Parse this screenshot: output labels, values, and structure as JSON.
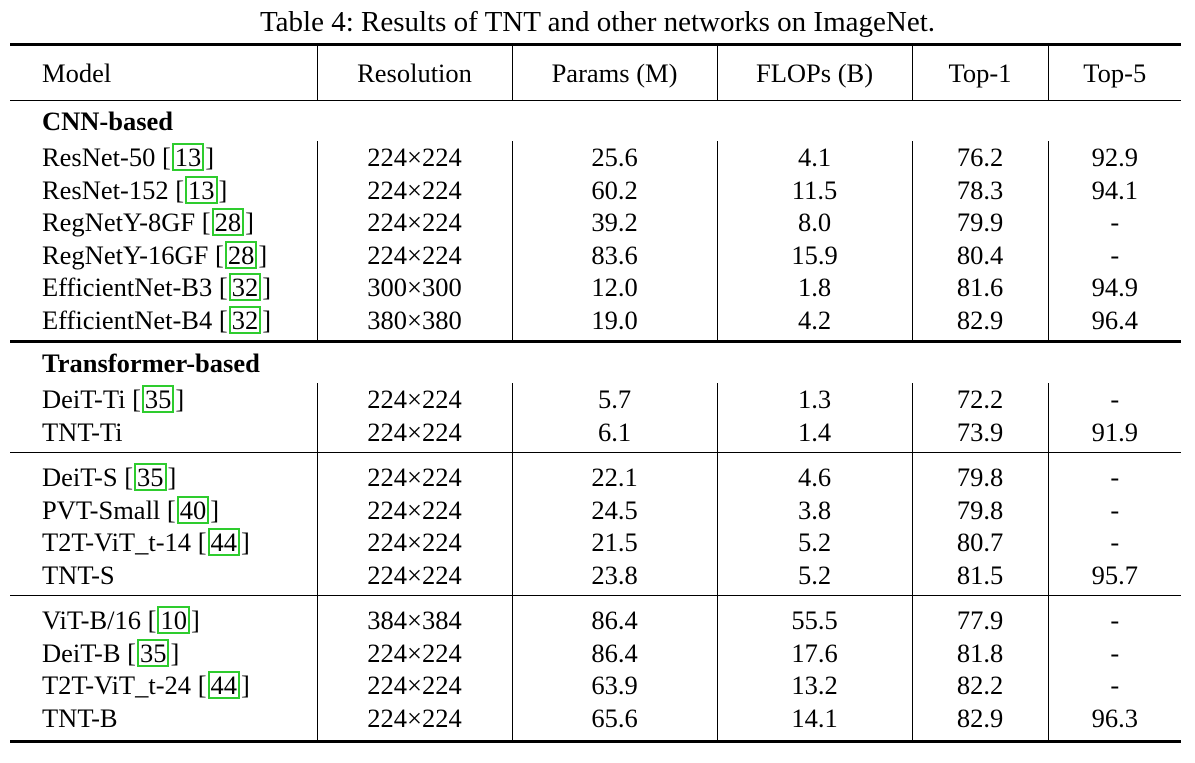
{
  "caption": "Table 4: Results of TNT and other networks on ImageNet.",
  "columns": [
    "Model",
    "Resolution",
    "Params (M)",
    "FLOPs (B)",
    "Top-1",
    "Top-5"
  ],
  "groups": [
    {
      "heading": "CNN-based",
      "rows": [
        {
          "model": "ResNet-50",
          "ref": "13",
          "resolution": "224×224",
          "params": "25.6",
          "flops": "4.1",
          "top1": "76.2",
          "top5": "92.9"
        },
        {
          "model": "ResNet-152",
          "ref": "13",
          "resolution": "224×224",
          "params": "60.2",
          "flops": "11.5",
          "top1": "78.3",
          "top5": "94.1"
        },
        {
          "model": "RegNetY-8GF",
          "ref": "28",
          "resolution": "224×224",
          "params": "39.2",
          "flops": "8.0",
          "top1": "79.9",
          "top5": "-"
        },
        {
          "model": "RegNetY-16GF",
          "ref": "28",
          "resolution": "224×224",
          "params": "83.6",
          "flops": "15.9",
          "top1": "80.4",
          "top5": "-"
        },
        {
          "model": "EfficientNet-B3",
          "ref": "32",
          "resolution": "300×300",
          "params": "12.0",
          "flops": "1.8",
          "top1": "81.6",
          "top5": "94.9"
        },
        {
          "model": "EfficientNet-B4",
          "ref": "32",
          "resolution": "380×380",
          "params": "19.0",
          "flops": "4.2",
          "top1": "82.9",
          "top5": "96.4"
        }
      ]
    },
    {
      "heading": "Transformer-based",
      "rows": [
        {
          "model": "DeiT-Ti",
          "ref": "35",
          "resolution": "224×224",
          "params": "5.7",
          "flops": "1.3",
          "top1": "72.2",
          "top5": "-"
        },
        {
          "model": "TNT-Ti",
          "ref": "",
          "resolution": "224×224",
          "params": "6.1",
          "flops": "1.4",
          "top1": "73.9",
          "top5": "91.9"
        },
        {
          "model": "DeiT-S",
          "ref": "35",
          "resolution": "224×224",
          "params": "22.1",
          "flops": "4.6",
          "top1": "79.8",
          "top5": "-"
        },
        {
          "model": "PVT-Small",
          "ref": "40",
          "resolution": "224×224",
          "params": "24.5",
          "flops": "3.8",
          "top1": "79.8",
          "top5": "-"
        },
        {
          "model": "T2T-ViT_t-14",
          "ref": "44",
          "resolution": "224×224",
          "params": "21.5",
          "flops": "5.2",
          "top1": "80.7",
          "top5": "-"
        },
        {
          "model": "TNT-S",
          "ref": "",
          "resolution": "224×224",
          "params": "23.8",
          "flops": "5.2",
          "top1": "81.5",
          "top5": "95.7"
        },
        {
          "model": "ViT-B/16",
          "ref": "10",
          "resolution": "384×384",
          "params": "86.4",
          "flops": "55.5",
          "top1": "77.9",
          "top5": "-"
        },
        {
          "model": "DeiT-B",
          "ref": "35",
          "resolution": "224×224",
          "params": "86.4",
          "flops": "17.6",
          "top1": "81.8",
          "top5": "-"
        },
        {
          "model": "T2T-ViT_t-24",
          "ref": "44",
          "resolution": "224×224",
          "params": "63.9",
          "flops": "13.2",
          "top1": "82.2",
          "top5": "-"
        },
        {
          "model": "TNT-B",
          "ref": "",
          "resolution": "224×224",
          "params": "65.6",
          "flops": "14.1",
          "top1": "82.9",
          "top5": "96.3"
        }
      ]
    }
  ]
}
